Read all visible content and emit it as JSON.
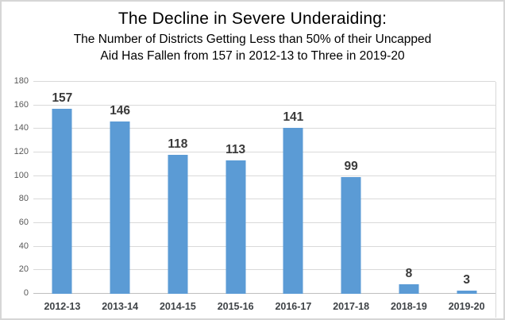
{
  "page": {
    "background": "#ffffff",
    "border_color": "#d6d6d6"
  },
  "chart_data": {
    "type": "bar",
    "title": "The Decline in Severe Underaiding:",
    "subtitle_lines": [
      "The Number of Districts Getting Less than 50% of their Uncapped",
      "Aid Has Fallen from 157 in 2012-13 to Three in 2019-20"
    ],
    "categories": [
      "2012-13",
      "2013-14",
      "2014-15",
      "2015-16",
      "2016-17",
      "2017-18",
      "2018-19",
      "2019-20"
    ],
    "values": [
      157,
      146,
      118,
      113,
      141,
      99,
      8,
      3
    ],
    "data_labels": [
      "157",
      "146",
      "118",
      "113",
      "141",
      "99",
      "8",
      "3"
    ],
    "xlabel": "",
    "ylabel": "",
    "ylim": [
      0,
      180
    ],
    "ytick_step": 20,
    "ytick_labels": [
      "0",
      "20",
      "40",
      "60",
      "80",
      "100",
      "120",
      "140",
      "160",
      "180"
    ],
    "grid": true,
    "legend": "none",
    "colors": {
      "bar": "#5b9bd5",
      "data_label": "#3a3a3a",
      "x_label": "#3f4347",
      "y_tick_label": "#595959",
      "gridline": "#d9d9d9",
      "axis_line": "#bfbfbf"
    }
  }
}
